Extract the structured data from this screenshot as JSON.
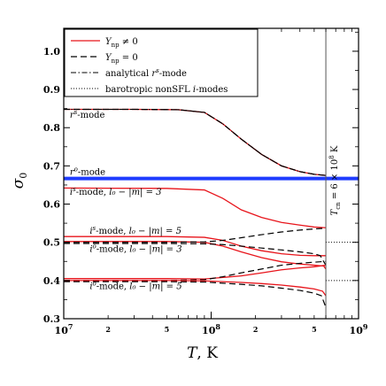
{
  "chart_data": {
    "type": "line",
    "title": "",
    "xlabel": "T, K",
    "ylabel": "σ0",
    "xscale": "log",
    "xlim": [
      10000000.0,
      1000000000.0
    ],
    "ylim": [
      0.3,
      1.06
    ],
    "grid": false,
    "legend_position": "top-right",
    "x_major_ticks": [
      {
        "value": 10000000.0,
        "base": "10",
        "exp": "7"
      },
      {
        "value": 100000000.0,
        "base": "10",
        "exp": "8"
      },
      {
        "value": 1000000000.0,
        "base": "10",
        "exp": "9"
      }
    ],
    "x_minor_labeled_ticks": [
      {
        "value": 20000000.0,
        "label": "2"
      },
      {
        "value": 50000000.0,
        "label": "5"
      },
      {
        "value": 200000000.0,
        "label": "2"
      },
      {
        "value": 500000000.0,
        "label": "5"
      }
    ],
    "y_ticks": [
      {
        "value": 0.3,
        "label": "0.3"
      },
      {
        "value": 0.4,
        "label": "0.4"
      },
      {
        "value": 0.5,
        "label": "0.5"
      },
      {
        "value": 0.6,
        "label": "0.6"
      },
      {
        "value": 0.7,
        "label": "0.7"
      },
      {
        "value": 0.8,
        "label": "0.8"
      },
      {
        "value": 0.9,
        "label": "0.9"
      },
      {
        "value": 1.0,
        "label": "1.0"
      }
    ],
    "legend": [
      {
        "key": "ynp_nonzero",
        "label": "Y_np ≠ 0",
        "color": "#e8141b",
        "dash": "solid"
      },
      {
        "key": "ynp_zero",
        "label": "Y_np = 0",
        "color": "#000000",
        "dash": "dashed"
      },
      {
        "key": "analytical",
        "label": "analytical r^s-mode",
        "color": "#000000",
        "dash": "dashdot"
      },
      {
        "key": "barotropic",
        "label": "barotropic nonSFL i-modes",
        "color": "#000000",
        "dash": "dotted"
      }
    ],
    "vertical_line": {
      "x": 600000000.0,
      "label": "T_cn = 6 × 10^8 K"
    },
    "series": [
      {
        "key": "rs_red",
        "style": "ynp_nonzero",
        "x": [
          10000000.0,
          30000000.0,
          60000000.0,
          90000000.0,
          120000000.0,
          160000000.0,
          220000000.0,
          300000000.0,
          400000000.0,
          500000000.0,
          600000000.0
        ],
        "y": [
          0.848,
          0.848,
          0.847,
          0.84,
          0.81,
          0.77,
          0.73,
          0.7,
          0.685,
          0.678,
          0.675
        ]
      },
      {
        "key": "rs_dashed",
        "style": "ynp_zero",
        "x": [
          10000000.0,
          30000000.0,
          60000000.0,
          90000000.0,
          120000000.0,
          160000000.0,
          220000000.0,
          300000000.0,
          400000000.0,
          500000000.0,
          600000000.0
        ],
        "y": [
          0.848,
          0.848,
          0.847,
          0.84,
          0.81,
          0.77,
          0.73,
          0.7,
          0.685,
          0.678,
          0.675
        ]
      },
      {
        "key": "rs_analytical",
        "style": "analytical",
        "x": [
          10000000.0,
          30000000.0,
          60000000.0,
          90000000.0,
          120000000.0,
          160000000.0,
          220000000.0,
          300000000.0,
          400000000.0,
          500000000.0,
          600000000.0
        ],
        "y": [
          0.848,
          0.848,
          0.847,
          0.84,
          0.81,
          0.77,
          0.73,
          0.7,
          0.685,
          0.678,
          0.675
        ]
      },
      {
        "key": "ro",
        "style": "blue_thick",
        "x": [
          10000000.0,
          1000000000.0
        ],
        "y": [
          0.667,
          0.667
        ]
      },
      {
        "key": "is3_red",
        "style": "ynp_nonzero",
        "x": [
          10000000.0,
          50000000.0,
          90000000.0,
          120000000.0,
          160000000.0,
          220000000.0,
          300000000.0,
          400000000.0,
          500000000.0,
          600000000.0
        ],
        "y": [
          0.642,
          0.641,
          0.637,
          0.615,
          0.585,
          0.565,
          0.552,
          0.545,
          0.54,
          0.538
        ]
      },
      {
        "key": "is5_red",
        "style": "ynp_nonzero",
        "x": [
          10000000.0,
          50000000.0,
          90000000.0,
          120000000.0,
          160000000.0,
          220000000.0,
          300000000.0,
          400000000.0,
          500000000.0,
          600000000.0
        ],
        "y": [
          0.515,
          0.515,
          0.513,
          0.505,
          0.49,
          0.478,
          0.47,
          0.466,
          0.465,
          0.465
        ]
      },
      {
        "key": "is3_red_low",
        "style": "ynp_nonzero",
        "x": [
          10000000.0,
          50000000.0,
          90000000.0,
          120000000.0,
          160000000.0,
          220000000.0,
          300000000.0,
          400000000.0,
          500000000.0,
          580000000.0,
          600000000.0
        ],
        "y": [
          0.502,
          0.502,
          0.5,
          0.49,
          0.475,
          0.46,
          0.449,
          0.443,
          0.44,
          0.438,
          0.43
        ]
      },
      {
        "key": "io3_dashed_up",
        "style": "ynp_zero",
        "x": [
          10000000.0,
          50000000.0,
          90000000.0,
          120000000.0,
          160000000.0,
          220000000.0,
          300000000.0,
          400000000.0,
          500000000.0,
          600000000.0
        ],
        "y": [
          0.5,
          0.5,
          0.501,
          0.505,
          0.512,
          0.52,
          0.527,
          0.532,
          0.535,
          0.537
        ]
      },
      {
        "key": "io3_dashed_down",
        "style": "ynp_zero",
        "x": [
          10000000.0,
          50000000.0,
          90000000.0,
          120000000.0,
          160000000.0,
          220000000.0,
          300000000.0,
          400000000.0,
          500000000.0,
          550000000.0,
          600000000.0
        ],
        "y": [
          0.497,
          0.497,
          0.496,
          0.494,
          0.49,
          0.485,
          0.48,
          0.475,
          0.47,
          0.465,
          0.44
        ]
      },
      {
        "key": "is5_red_low",
        "style": "ynp_nonzero",
        "x": [
          10000000.0,
          50000000.0,
          90000000.0,
          120000000.0,
          160000000.0,
          220000000.0,
          300000000.0,
          400000000.0,
          500000000.0,
          600000000.0
        ],
        "y": [
          0.405,
          0.405,
          0.404,
          0.408,
          0.412,
          0.42,
          0.428,
          0.433,
          0.436,
          0.44
        ]
      },
      {
        "key": "io5_dashed_up",
        "style": "ynp_zero",
        "x": [
          10000000.0,
          50000000.0,
          90000000.0,
          120000000.0,
          160000000.0,
          220000000.0,
          300000000.0,
          400000000.0,
          500000000.0,
          600000000.0
        ],
        "y": [
          0.4,
          0.4,
          0.402,
          0.41,
          0.42,
          0.43,
          0.44,
          0.445,
          0.448,
          0.45
        ]
      },
      {
        "key": "io5_dashed_down",
        "style": "ynp_zero",
        "x": [
          10000000.0,
          50000000.0,
          90000000.0,
          120000000.0,
          160000000.0,
          220000000.0,
          300000000.0,
          400000000.0,
          500000000.0,
          560000000.0,
          600000000.0
        ],
        "y": [
          0.397,
          0.397,
          0.396,
          0.393,
          0.39,
          0.386,
          0.38,
          0.374,
          0.367,
          0.36,
          0.33
        ]
      },
      {
        "key": "io5_red_low",
        "style": "ynp_nonzero",
        "x": [
          10000000.0,
          50000000.0,
          90000000.0,
          120000000.0,
          160000000.0,
          220000000.0,
          300000000.0,
          400000000.0,
          500000000.0,
          570000000.0,
          600000000.0
        ],
        "y": [
          0.4,
          0.4,
          0.399,
          0.397,
          0.395,
          0.392,
          0.388,
          0.383,
          0.378,
          0.372,
          0.36
        ]
      }
    ],
    "horizontal_dotted": [
      {
        "y": 0.5,
        "x_from": 600000000.0,
        "x_to": 1000000000.0
      },
      {
        "y": 0.4,
        "x_from": 600000000.0,
        "x_to": 1000000000.0
      }
    ],
    "annotations": [
      {
        "key": "rs",
        "base": "r",
        "sup": "s",
        "suffix": "-mode",
        "x": 11000000.0,
        "y": 0.826
      },
      {
        "key": "ro",
        "base": "r",
        "sup": "o",
        "suffix": "-mode",
        "x": 11000000.0,
        "y": 0.676
      },
      {
        "key": "is3",
        "base": "i",
        "sup": "s",
        "suffix": "-mode, ",
        "tail": "l₀ − |m| = 3",
        "x": 11000000.0,
        "y": 0.624
      },
      {
        "key": "is5",
        "base": "i",
        "sup": "s",
        "suffix": "-mode, ",
        "tail": "l₀ − |m| = 5",
        "x": 15000000.0,
        "y": 0.522
      },
      {
        "key": "io3",
        "base": "i",
        "sup": "o",
        "suffix": "-mode, ",
        "tail": "l₀ − |m| = 3",
        "x": 15000000.0,
        "y": 0.475
      },
      {
        "key": "io5",
        "base": "i",
        "sup": "o",
        "suffix": "-mode, ",
        "tail": "l₀ − |m| = 5",
        "x": 15000000.0,
        "y": 0.378
      }
    ]
  },
  "colors": {
    "red": "#e8141b",
    "blue": "#1f3cff",
    "black": "#000000"
  }
}
